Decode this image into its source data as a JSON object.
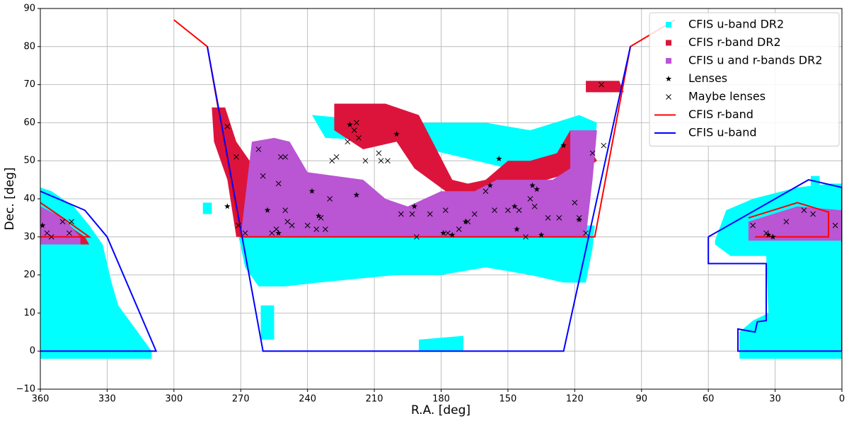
{
  "chart_data": {
    "type": "scatter",
    "xlabel": "R.A. [deg]",
    "ylabel": "Dec. [deg]",
    "xlim": [
      360,
      0
    ],
    "ylim": [
      -10,
      90
    ],
    "xticks": [
      360,
      330,
      300,
      270,
      240,
      210,
      180,
      150,
      120,
      90,
      60,
      30,
      0
    ],
    "yticks": [
      {
        "value": -10,
        "label": "−10"
      },
      0,
      10,
      20,
      30,
      40,
      50,
      60,
      70,
      80,
      90
    ],
    "grid": true,
    "legend": "upper right",
    "series": [
      {
        "name": "CFIS u-band DR2",
        "color": "#00ffff",
        "marker": "square",
        "polygons": [
          {
            "x": [
              272,
              268,
              262,
              250,
              235,
              200,
              180,
              160,
              140,
              125,
              115,
              112,
              111,
              120,
              270
            ],
            "y": [
              33,
              22,
              17,
              17,
              18,
              20,
              20,
              22,
              20,
              18,
              18,
              27,
              33,
              33,
              33
            ]
          },
          {
            "x": [
              238,
              200,
              160,
              140,
              118,
              110,
              112,
              150,
              200,
              232
            ],
            "y": [
              62,
              60,
              60,
              58,
              62,
              60,
              50,
              48,
              55,
              56
            ]
          },
          {
            "x": [
              360,
              355,
              345,
              338,
              332,
              328,
              325,
              320,
              310,
              310,
              360
            ],
            "y": [
              43,
              42,
              38,
              33,
              28,
              18,
              12,
              8,
              0,
              -2,
              -2
            ]
          },
          {
            "x": [
              57,
              52,
              40,
              20,
              5,
              0,
              0,
              46,
              46,
              40,
              33,
              34,
              50,
              57
            ],
            "y": [
              29,
              37,
              40,
              43,
              44,
              44,
              -2,
              -2,
              5,
              8,
              10,
              25,
              25,
              28
            ]
          },
          {
            "x": [
              287,
              283,
              283,
              287
            ],
            "y": [
              39,
              39,
              36,
              36
            ]
          },
          {
            "x": [
              261,
              255,
              255,
              261
            ],
            "y": [
              12,
              12,
              3,
              3
            ]
          },
          {
            "x": [
              190,
              170,
              170,
              190
            ],
            "y": [
              3,
              4,
              0,
              0
            ]
          },
          {
            "x": [
              14,
              10,
              10,
              14
            ],
            "y": [
              46,
              46,
              43,
              43
            ]
          }
        ]
      },
      {
        "name": "CFIS r-band DR2",
        "color": "#dc143c",
        "marker": "square",
        "polygons": [
          {
            "x": [
              360,
              350,
              345,
              340,
              338,
              360
            ],
            "y": [
              38,
              35,
              32,
              30,
              28,
              28
            ]
          },
          {
            "x": [
              283,
              277,
              272,
              266,
              262,
              265,
              272,
              276,
              282
            ],
            "y": [
              64,
              64,
              55,
              50,
              40,
              30,
              30,
              45,
              55
            ]
          },
          {
            "x": [
              228,
              205,
              190,
              175,
              168,
              160,
              150,
              140,
              128,
              122,
              115,
              110,
              115,
              150,
              165,
              178,
              192,
              200,
              215,
              228
            ],
            "y": [
              65,
              65,
              62,
              45,
              44,
              45,
              50,
              50,
              52,
              58,
              55,
              50,
              48,
              42,
              40,
              42,
              48,
              55,
              53,
              58
            ]
          },
          {
            "x": [
              115,
              100,
              98,
              115
            ],
            "y": [
              71,
              71,
              68,
              68
            ]
          }
        ]
      },
      {
        "name": "CFIS u and r-bands DR2",
        "color": "#ba55d3",
        "marker": "square",
        "polygons": [
          {
            "x": [
              360,
              350,
              342,
              342,
              360
            ],
            "y": [
              38,
              35,
              30,
              28,
              28
            ]
          },
          {
            "x": [
              265,
              255,
              248,
              245,
              240,
              215,
              205,
              195,
              180,
              165,
              155,
              130,
              122,
              122,
              110,
              112,
              115,
              270,
              267
            ],
            "y": [
              55,
              56,
              55,
              52,
              47,
              45,
              40,
              38,
              42,
              42,
              45,
              45,
              48,
              58,
              58,
              45,
              30,
              30,
              45
            ]
          },
          {
            "x": [
              42,
              20,
              0,
              0,
              42
            ],
            "y": [
              34,
              38,
              37,
              29,
              29
            ]
          }
        ]
      },
      {
        "name": "Lenses",
        "color": "#000000",
        "marker": "star",
        "x": [
          359,
          276,
          258,
          253,
          238,
          235,
          218,
          221,
          200,
          192,
          179,
          175,
          169,
          158,
          154,
          147,
          146,
          139,
          137,
          135,
          125,
          118,
          33,
          31
        ],
        "y": [
          33,
          38,
          37,
          31,
          42,
          35.5,
          41,
          59.5,
          57,
          38,
          31,
          30.5,
          34,
          43.5,
          50.5,
          38,
          32,
          43.5,
          42.5,
          30.5,
          54,
          34.5,
          30.5,
          30
        ]
      },
      {
        "name": "Maybe lenses",
        "color": "#000000",
        "marker": "x",
        "x": [
          357,
          355,
          350,
          347,
          346,
          276,
          272,
          271,
          268,
          262,
          260,
          256,
          254,
          253,
          252,
          250,
          250,
          249,
          247,
          240,
          236,
          234,
          232,
          230,
          229,
          227,
          222,
          219,
          218,
          217,
          214,
          208,
          207,
          204,
          198,
          193,
          191,
          185,
          178,
          177,
          172,
          168,
          165,
          160,
          156,
          150,
          145,
          142,
          140,
          138,
          132,
          127,
          120,
          118,
          115,
          112,
          107,
          108,
          40,
          34,
          25,
          17,
          13,
          3
        ],
        "y": [
          31,
          30,
          34,
          31,
          34,
          59,
          51,
          33,
          31,
          53,
          46,
          31,
          32,
          44,
          51,
          51,
          37,
          34,
          33,
          33,
          32,
          35,
          32,
          40,
          50,
          51,
          55,
          58,
          60,
          56,
          50,
          52,
          50,
          50,
          36,
          36,
          30,
          36,
          37,
          31,
          32,
          34,
          36,
          42,
          37,
          37,
          37,
          30,
          40,
          38,
          35,
          35,
          39,
          35,
          31,
          52,
          54,
          70,
          33,
          31,
          34,
          37,
          36,
          33
        ]
      },
      {
        "name": "CFIS r-band",
        "color": "#ff0000",
        "marker": "line",
        "polygons": [
          {
            "x": [
              300,
              285,
              270,
              111,
              95,
              75
            ],
            "y": [
              87,
              80,
              30,
              30,
              80,
              87
            ]
          },
          {
            "x": [
              360,
              350,
              338,
              360
            ],
            "y": [
              39,
              35,
              30,
              30
            ]
          },
          {
            "x": [
              42,
              20,
              6,
              6,
              39
            ],
            "y": [
              35,
              39,
              36.5,
              30,
              30
            ]
          }
        ]
      },
      {
        "name": "CFIS u-band",
        "color": "#0000ff",
        "marker": "line",
        "polygons": [
          {
            "x": [
              285,
              260,
              125,
              95
            ],
            "y": [
              80,
              0,
              0,
              80
            ]
          },
          {
            "x": [
              360,
              340,
              330,
              308,
              360
            ],
            "y": [
              42,
              37,
              30,
              0,
              0
            ]
          },
          {
            "x": [
              60,
              15,
              0,
              0,
              46.7,
              46.7,
              39,
              38,
              34,
              34,
              36.5,
              60,
              60
            ],
            "y": [
              30,
              45,
              43,
              0,
              0,
              5.8,
              5,
              7.7,
              8,
              23,
              23,
              23,
              30
            ]
          }
        ]
      }
    ]
  }
}
